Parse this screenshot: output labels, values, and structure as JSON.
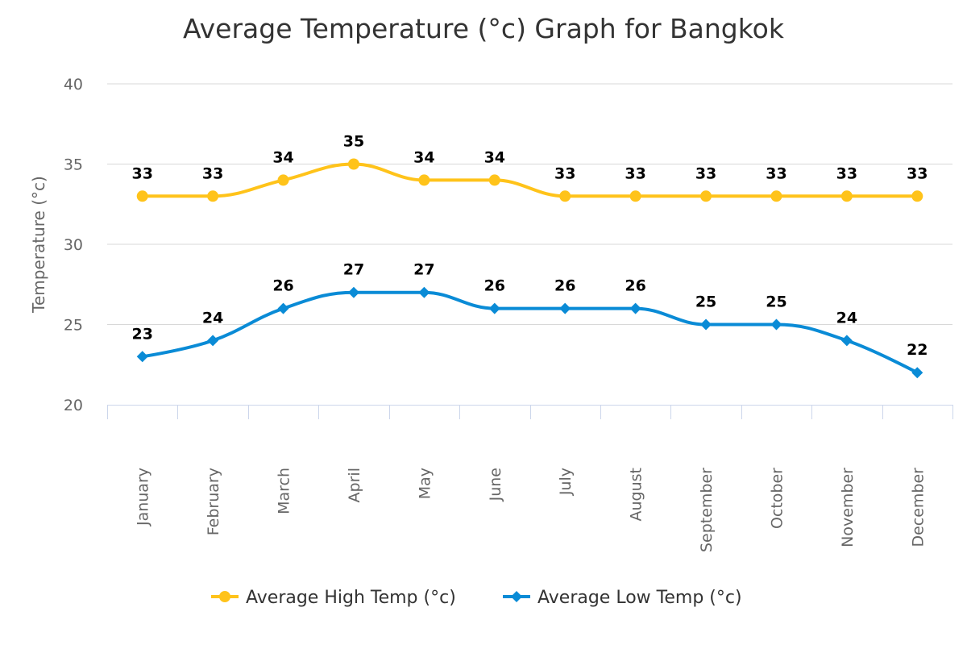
{
  "chart_data": {
    "type": "line",
    "title": "Average Temperature (°c) Graph for Bangkok",
    "xlabel": "",
    "ylabel": "Temperature (°c)",
    "ylim": [
      20,
      40
    ],
    "yticks": [
      "20",
      "25",
      "30",
      "35",
      "40"
    ],
    "grid": true,
    "legend": "bottom",
    "categories": [
      "January",
      "February",
      "March",
      "April",
      "May",
      "June",
      "July",
      "August",
      "September",
      "October",
      "November",
      "December"
    ],
    "series": [
      {
        "name": "Average High Temp (°c)",
        "color": "#FFC31A",
        "marker": "circle",
        "values": [
          33,
          33,
          34,
          35,
          34,
          34,
          33,
          33,
          33,
          33,
          33,
          33
        ]
      },
      {
        "name": "Average Low Temp (°c)",
        "color": "#0A8BD6",
        "marker": "diamond",
        "values": [
          23,
          24,
          26,
          27,
          27,
          26,
          26,
          26,
          25,
          25,
          24,
          22
        ]
      }
    ]
  }
}
